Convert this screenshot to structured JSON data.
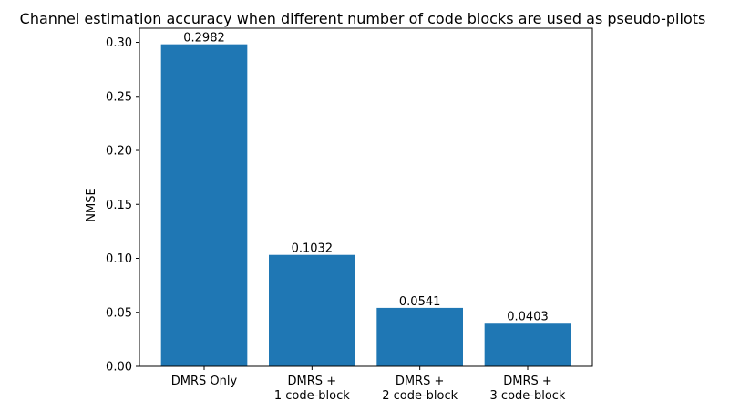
{
  "chart_data": {
    "type": "bar",
    "title": "Channel estimation accuracy when different number of code blocks are used as pseudo-pilots",
    "xlabel": "",
    "ylabel": "NMSE",
    "categories": [
      [
        "DMRS Only"
      ],
      [
        "DMRS +",
        "1 code-block"
      ],
      [
        "DMRS +",
        "2 code-block"
      ],
      [
        "DMRS +",
        "3 code-block"
      ]
    ],
    "values": [
      0.2982,
      0.1032,
      0.0541,
      0.0403
    ],
    "value_labels": [
      "0.2982",
      "0.1032",
      "0.0541",
      "0.0403"
    ],
    "ylim": [
      0,
      0.3131
    ],
    "yticks": [
      0.0,
      0.05,
      0.1,
      0.15,
      0.2,
      0.25,
      0.3
    ],
    "ytick_labels": [
      "0.00",
      "0.05",
      "0.10",
      "0.15",
      "0.20",
      "0.25",
      "0.30"
    ],
    "grid": false,
    "bar_color": "#1f77b4"
  }
}
